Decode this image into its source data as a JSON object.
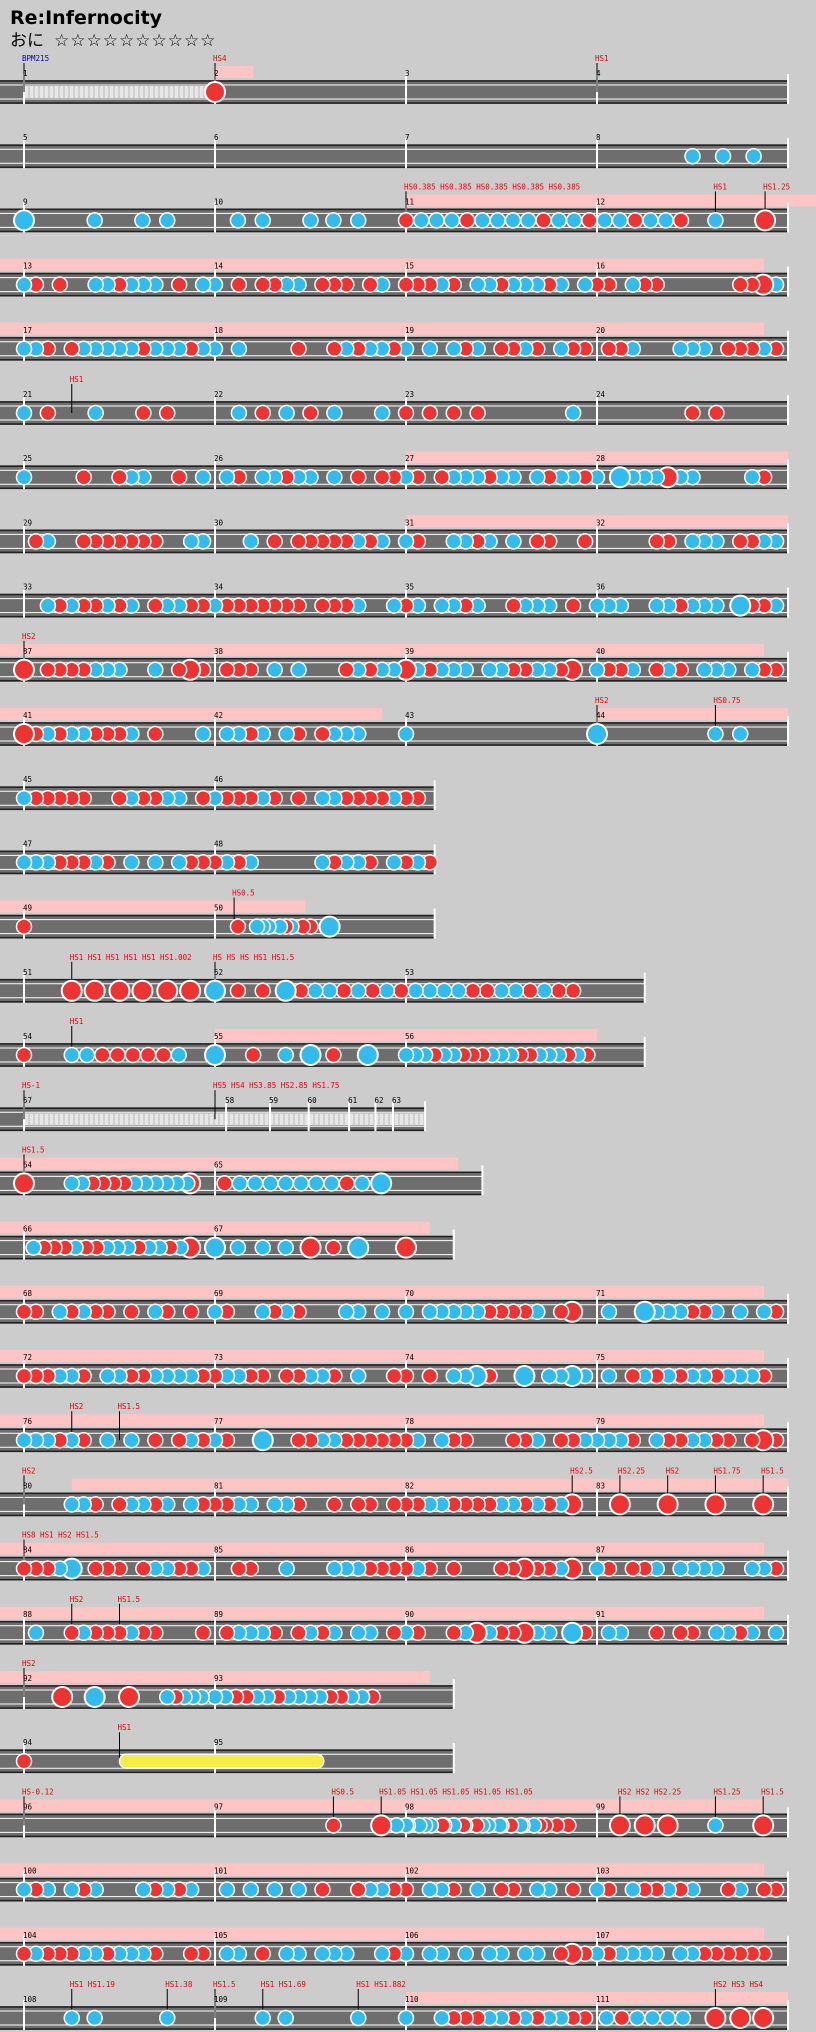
{
  "song": {
    "title": "Re:Infernocity",
    "difficulty": "おに",
    "stars": "☆☆☆☆☆☆☆☆☆☆"
  },
  "colors": {
    "background": "#cccccc",
    "lane": "#6e6e6e",
    "don": "#ee3333",
    "ka": "#33bbee",
    "drumroll": "#f4ee44",
    "gogo": "#ffc4c4",
    "scroll_label": "#ee0000",
    "bpm_label": "#0000cc",
    "barline": "#ffffff"
  },
  "rows": [
    {
      "row": 1,
      "measures": [
        "1",
        "2",
        "3",
        "4"
      ],
      "labels": [
        {
          "t": "BPM215",
          "c": "blue",
          "m": 0,
          "f": 0.0
        },
        {
          "t": "HS4",
          "c": "red",
          "m": 1,
          "f": 0.0
        },
        {
          "t": "HS1",
          "c": "red",
          "m": 3,
          "f": 0.0
        }
      ],
      "notes": [
        [
          1,
          0,
          "D"
        ]
      ],
      "gogo": [
        [
          1,
          0,
          0.2
        ]
      ],
      "rests": [
        [
          0,
          0,
          1
        ]
      ],
      "w": 4
    },
    {
      "row": 2,
      "measures": [
        "5",
        "6",
        "7",
        "8"
      ],
      "labels": [],
      "notes": [
        [
          3,
          0.5,
          "k"
        ],
        [
          3,
          0.66,
          "k"
        ],
        [
          3,
          0.82,
          "k"
        ]
      ],
      "gogo": [],
      "w": 4
    },
    {
      "row": 3,
      "measures": [
        "9",
        "10",
        "11",
        "12"
      ],
      "labels": [
        {
          "t": "HS0.385 HS0.385 HS0.385 HS0.385 HS0.385",
          "c": "red",
          "m": 2,
          "f": 0.0
        },
        {
          "t": "HS1",
          "c": "red",
          "m": 3,
          "f": 0.62
        },
        {
          "t": "HS1.25",
          "c": "red",
          "m": 3,
          "f": 0.88
        }
      ],
      "notes": [
        [
          0,
          0,
          "K"
        ],
        [
          0,
          0.37,
          "k"
        ],
        [
          0,
          0.62,
          "k"
        ],
        [
          0,
          0.75,
          "k"
        ],
        [
          1,
          0.12,
          "k"
        ],
        [
          1,
          0.25,
          "k"
        ],
        [
          1,
          0.5,
          "k"
        ],
        [
          1,
          0.62,
          "k"
        ],
        [
          1,
          0.75,
          "k"
        ],
        [
          2,
          0,
          "d"
        ],
        [
          2,
          0.08,
          "k"
        ],
        [
          2,
          0.16,
          "k"
        ],
        [
          2,
          0.24,
          "k"
        ],
        [
          2,
          0.32,
          "d"
        ],
        [
          2,
          0.4,
          "k"
        ],
        [
          2,
          0.48,
          "k"
        ],
        [
          2,
          0.56,
          "k"
        ],
        [
          2,
          0.64,
          "k"
        ],
        [
          2,
          0.72,
          "d"
        ],
        [
          2,
          0.8,
          "k"
        ],
        [
          2,
          0.88,
          "k"
        ],
        [
          2,
          0.96,
          "d"
        ],
        [
          3,
          0.04,
          "k"
        ],
        [
          3,
          0.12,
          "k"
        ],
        [
          3,
          0.2,
          "d"
        ],
        [
          3,
          0.28,
          "k"
        ],
        [
          3,
          0.36,
          "k"
        ],
        [
          3,
          0.44,
          "d"
        ],
        [
          3,
          0.62,
          "k"
        ],
        [
          3,
          0.88,
          "D"
        ]
      ],
      "gogo": [
        [
          2,
          0,
          4
        ]
      ],
      "w": 4
    },
    {
      "row": 4,
      "measures": [
        "13",
        "14",
        "15",
        "16"
      ],
      "labels": [],
      "notes": "dense",
      "gogo": [
        [
          0,
          0,
          4
        ]
      ],
      "end": "D",
      "w": 4
    },
    {
      "row": 5,
      "measures": [
        "17",
        "18",
        "19",
        "20"
      ],
      "labels": [],
      "notes": "dense",
      "gogo": [
        [
          0,
          0,
          4
        ]
      ],
      "w": 4
    },
    {
      "row": 6,
      "measures": [
        "21",
        "22",
        "23",
        "24"
      ],
      "labels": [
        {
          "t": "HS1",
          "c": "red",
          "m": 0,
          "f": 0.25
        }
      ],
      "notes": "sparse",
      "gogo": [],
      "w": 4
    },
    {
      "row": 7,
      "measures": [
        "25",
        "26",
        "27",
        "28"
      ],
      "labels": [],
      "notes": "dense",
      "gogo": [
        [
          2,
          0,
          2
        ]
      ],
      "big": [
        [
          3,
          0.12,
          "K"
        ],
        [
          3,
          0.37,
          "D"
        ]
      ],
      "w": 4
    },
    {
      "row": 8,
      "measures": [
        "29",
        "30",
        "31",
        "32"
      ],
      "labels": [],
      "notes": "dense",
      "gogo": [
        [
          2,
          0,
          2
        ]
      ],
      "w": 4
    },
    {
      "row": 9,
      "measures": [
        "33",
        "34",
        "35",
        "36"
      ],
      "labels": [],
      "notes": "dense",
      "gogo": [],
      "big": [
        [
          3,
          0.75,
          "K"
        ]
      ],
      "w": 4
    },
    {
      "row": 10,
      "measures": [
        "37",
        "38",
        "39",
        "40"
      ],
      "labels": [
        {
          "t": "HS2",
          "c": "red",
          "m": 0,
          "f": 0.0
        }
      ],
      "notes": "dense",
      "gogo": [
        [
          0,
          0,
          4
        ]
      ],
      "big": [
        [
          0,
          0,
          "D"
        ],
        [
          0,
          0.87,
          "D"
        ],
        [
          2,
          0,
          "D"
        ],
        [
          2,
          0.87,
          "D"
        ]
      ],
      "w": 4
    },
    {
      "row": 11,
      "measures": [
        "41",
        "42",
        "43",
        "44"
      ],
      "labels": [
        {
          "t": "HS2",
          "c": "red",
          "m": 3,
          "f": 0.0
        },
        {
          "t": "HS0.75",
          "c": "red",
          "m": 3,
          "f": 0.62
        }
      ],
      "notes": "half",
      "gogo": [
        [
          0,
          0,
          2
        ],
        [
          3,
          0,
          1
        ]
      ],
      "big": [
        [
          0,
          0,
          "D"
        ],
        [
          3,
          0,
          "K"
        ]
      ],
      "w": 4
    },
    {
      "row": 12,
      "measures": [
        "45",
        "46"
      ],
      "labels": [],
      "notes": "dense2",
      "gogo": [],
      "w": 2.15
    },
    {
      "row": 13,
      "measures": [
        "47",
        "48"
      ],
      "labels": [],
      "notes": "dense2",
      "gogo": [],
      "w": 2.15
    },
    {
      "row": 14,
      "measures": [
        "49",
        "50"
      ],
      "labels": [
        {
          "t": "HS0.5",
          "c": "red",
          "m": 0,
          "f": 1.1
        }
      ],
      "notes": "r14",
      "gogo": [
        [
          0,
          0,
          1.6
        ]
      ],
      "w": 2.15
    },
    {
      "row": 15,
      "measures": [
        "51",
        "52",
        "53"
      ],
      "labels": [
        {
          "t": "HS1 HS1 HS1 HS1 HS1 HS1.002",
          "c": "red",
          "m": 0,
          "f": 0.25
        },
        {
          "t": "HS HS HS HS1 HS1.5",
          "c": "red",
          "m": 1,
          "f": 0.0
        }
      ],
      "notes": "r15",
      "gogo": [],
      "w": 3.25
    },
    {
      "row": 16,
      "measures": [
        "54",
        "55",
        "56"
      ],
      "labels": [
        {
          "t": "HS1",
          "c": "red",
          "m": 0,
          "f": 0.25
        }
      ],
      "notes": "r16",
      "gogo": [
        [
          1,
          0,
          2
        ]
      ],
      "w": 3.25
    },
    {
      "row": 17,
      "measures": [
        "57",
        "58",
        "59",
        "60",
        "61",
        "62",
        "63"
      ],
      "labels": [
        {
          "t": "HS-1",
          "c": "red",
          "m": 0,
          "f": 0.0
        },
        {
          "t": "HS5  HS4  HS3.85 HS2.85 HS1.75",
          "c": "red",
          "m": 1,
          "f": 0.0
        }
      ],
      "notes": [],
      "gogo": [],
      "rests": [
        [
          0,
          0,
          2.1
        ]
      ],
      "w": 2.1
    },
    {
      "row": 18,
      "measures": [
        "64",
        "65"
      ],
      "labels": [
        {
          "t": "HS1.5",
          "c": "red",
          "m": 0,
          "f": 0.0
        }
      ],
      "notes": "r18",
      "gogo": [
        [
          0,
          0,
          2.4
        ]
      ],
      "w": 2.4
    },
    {
      "row": 19,
      "measures": [
        "66",
        "67"
      ],
      "labels": [],
      "notes": "r19",
      "gogo": [
        [
          0,
          0,
          2.25
        ]
      ],
      "w": 2.25
    },
    {
      "row": 20,
      "measures": [
        "68",
        "69",
        "70",
        "71"
      ],
      "labels": [],
      "notes": "dense",
      "gogo": [
        [
          0,
          0,
          4
        ]
      ],
      "big": [
        [
          2,
          0.87,
          "D"
        ],
        [
          3,
          0.25,
          "K"
        ]
      ],
      "w": 4
    },
    {
      "row": 21,
      "measures": [
        "72",
        "73",
        "74",
        "75"
      ],
      "labels": [],
      "notes": "dense",
      "gogo": [
        [
          0,
          0,
          4
        ]
      ],
      "big": [
        [
          2,
          0.37,
          "K"
        ],
        [
          2,
          0.62,
          "K"
        ],
        [
          2,
          0.87,
          "K"
        ]
      ],
      "w": 4
    },
    {
      "row": 22,
      "measures": [
        "76",
        "77",
        "78",
        "79"
      ],
      "labels": [
        {
          "t": "HS2",
          "c": "red",
          "m": 0,
          "f": 0.25
        },
        {
          "t": "HS1.5",
          "c": "red",
          "m": 0,
          "f": 0.5
        }
      ],
      "notes": "dense",
      "gogo": [
        [
          0,
          0,
          4
        ]
      ],
      "big": [
        [
          1,
          0.25,
          "K"
        ],
        [
          3,
          0.87,
          "D"
        ]
      ],
      "w": 4
    },
    {
      "row": 23,
      "measures": [
        "80",
        "81",
        "82",
        "83"
      ],
      "labels": [
        {
          "t": "HS2",
          "c": "red",
          "m": 0,
          "f": 0.0
        },
        {
          "t": "HS2.5",
          "c": "red",
          "m": 2,
          "f": 0.87
        },
        {
          "t": "HS2.25",
          "c": "red",
          "m": 3,
          "f": 0.12
        },
        {
          "t": "HS2",
          "c": "red",
          "m": 3,
          "f": 0.37
        },
        {
          "t": "HS1.75",
          "c": "red",
          "m": 3,
          "f": 0.62
        },
        {
          "t": "HS1.5",
          "c": "red",
          "m": 3,
          "f": 0.87
        }
      ],
      "notes": "r23",
      "gogo": [
        [
          0,
          0.25,
          3.75
        ]
      ],
      "w": 4
    },
    {
      "row": 24,
      "measures": [
        "84",
        "85",
        "86",
        "87"
      ],
      "labels": [
        {
          "t": "HS8 HS1 HS2 HS1.5",
          "c": "red",
          "m": 0,
          "f": 0.0
        }
      ],
      "notes": "dense",
      "gogo": [
        [
          0,
          0,
          4
        ]
      ],
      "big": [
        [
          0,
          0.25,
          "K"
        ],
        [
          2,
          0.62,
          "D"
        ],
        [
          2,
          0.87,
          "D"
        ]
      ],
      "w": 4
    },
    {
      "row": 25,
      "measures": [
        "88",
        "89",
        "90",
        "91"
      ],
      "labels": [
        {
          "t": "HS2",
          "c": "red",
          "m": 0,
          "f": 0.25
        },
        {
          "t": "HS1.5",
          "c": "red",
          "m": 0,
          "f": 0.5
        }
      ],
      "notes": "dense",
      "gogo": [
        [
          0,
          0,
          4
        ]
      ],
      "big": [
        [
          2,
          0.37,
          "D"
        ],
        [
          2,
          0.62,
          "D"
        ],
        [
          2,
          0.87,
          "K"
        ]
      ],
      "w": 4
    },
    {
      "row": 26,
      "measures": [
        "92",
        "93"
      ],
      "labels": [
        {
          "t": "HS2",
          "c": "red",
          "m": 0,
          "f": 0.0
        }
      ],
      "notes": "r26",
      "gogo": [
        [
          0,
          0,
          2.25
        ]
      ],
      "w": 2.25
    },
    {
      "row": 27,
      "measures": [
        "94",
        "95"
      ],
      "labels": [
        {
          "t": "HS1",
          "c": "red",
          "m": 0,
          "f": 0.5
        }
      ],
      "notes": [
        [
          0,
          0,
          "d"
        ]
      ],
      "roll": [
        0,
        0.5,
        1.55
      ],
      "gogo": [],
      "w": 2.25
    },
    {
      "row": 28,
      "measures": [
        "96",
        "97",
        "98",
        "99"
      ],
      "labels": [
        {
          "t": "HS-0.12",
          "c": "red",
          "m": 0,
          "f": 0.0
        },
        {
          "t": "HS0.5",
          "c": "red",
          "m": 1,
          "f": 0.62
        },
        {
          "t": "HS1.05 HS1.05 HS1.05 HS1.05 HS1.05",
          "c": "red",
          "m": 1,
          "f": 0.87
        },
        {
          "t": "HS2 HS2 HS2.25",
          "c": "red",
          "m": 3,
          "f": 0.12
        },
        {
          "t": "HS1.25",
          "c": "red",
          "m": 3,
          "f": 0.62
        },
        {
          "t": "HS1.5",
          "c": "red",
          "m": 3,
          "f": 0.87
        }
      ],
      "notes": "r28",
      "gogo": [
        [
          0,
          0,
          4
        ]
      ],
      "w": 4
    },
    {
      "row": 29,
      "measures": [
        "100",
        "101",
        "102",
        "103"
      ],
      "labels": [],
      "notes": "dense",
      "gogo": [
        [
          0,
          0,
          4
        ]
      ],
      "w": 4
    },
    {
      "row": 30,
      "measures": [
        "104",
        "105",
        "106",
        "107"
      ],
      "labels": [],
      "notes": "dense",
      "gogo": [
        [
          0,
          0,
          4
        ]
      ],
      "big": [
        [
          2,
          0.87,
          "D"
        ]
      ],
      "w": 4
    },
    {
      "row": 31,
      "measures": [
        "108",
        "109",
        "110",
        "111"
      ],
      "labels": [
        {
          "t": "HS1 HS1.19",
          "c": "red",
          "m": 0,
          "f": 0.25
        },
        {
          "t": "HS1.38",
          "c": "red",
          "m": 0,
          "f": 0.75
        },
        {
          "t": "HS1.5",
          "c": "red",
          "m": 1,
          "f": 0.0
        },
        {
          "t": "HS1 HS1.69",
          "c": "red",
          "m": 1,
          "f": 0.25
        },
        {
          "t": "HS1 HS1.882",
          "c": "red",
          "m": 1,
          "f": 0.75
        },
        {
          "t": "HS2 HS3 HS4",
          "c": "red",
          "m": 3,
          "f": 0.62
        }
      ],
      "notes": "r31",
      "gogo": [
        [
          2,
          0,
          2
        ]
      ],
      "big": [
        [
          3,
          0.62,
          "D"
        ],
        [
          3,
          0.75,
          "D"
        ],
        [
          3,
          0.87,
          "D"
        ]
      ],
      "w": 4
    }
  ]
}
